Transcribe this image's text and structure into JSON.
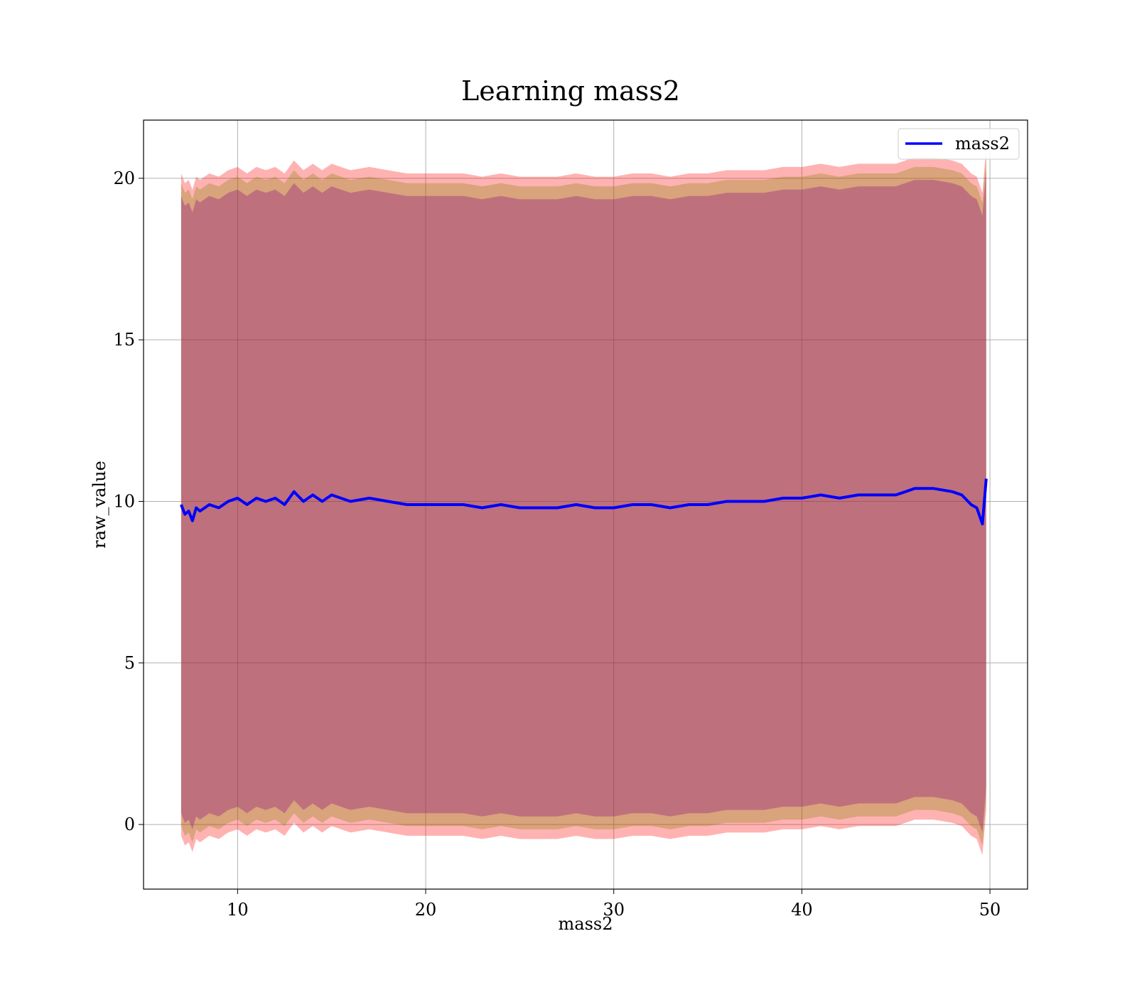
{
  "chart_data": {
    "type": "line",
    "title": "Learning mass2",
    "xlabel": "mass2",
    "ylabel": "raw_value",
    "xlim": [
      5,
      52
    ],
    "ylim": [
      -2,
      21.8
    ],
    "xticks": [
      10,
      20,
      30,
      40,
      50
    ],
    "xtick_labels": [
      "10",
      "20",
      "30",
      "40",
      "50"
    ],
    "yticks": [
      0,
      5,
      10,
      15,
      20
    ],
    "ytick_labels": [
      "0",
      "5",
      "10",
      "15",
      "20"
    ],
    "grid": true,
    "legend": {
      "position": "upper right",
      "entries": [
        "mass2"
      ]
    },
    "colors": {
      "line": "#0000ff",
      "outer_band": "#ff0000",
      "middle_band": "#808000",
      "inner_band": "#800080"
    },
    "series": [
      {
        "name": "mass2",
        "x": [
          7.0,
          7.2,
          7.4,
          7.6,
          7.8,
          8.0,
          8.5,
          9.0,
          9.5,
          10.0,
          10.5,
          11.0,
          11.5,
          12.0,
          12.5,
          13.0,
          13.5,
          14.0,
          14.5,
          15.0,
          16.0,
          17.0,
          18.0,
          19.0,
          20.0,
          21.0,
          22.0,
          23.0,
          24.0,
          25.0,
          26.0,
          27.0,
          28.0,
          29.0,
          30.0,
          31.0,
          32.0,
          33.0,
          34.0,
          35.0,
          36.0,
          37.0,
          38.0,
          39.0,
          40.0,
          41.0,
          42.0,
          43.0,
          44.0,
          45.0,
          46.0,
          47.0,
          48.0,
          48.5,
          49.0,
          49.3,
          49.6,
          49.8
        ],
        "y": [
          9.9,
          9.6,
          9.7,
          9.4,
          9.8,
          9.7,
          9.9,
          9.8,
          10.0,
          10.1,
          9.9,
          10.1,
          10.0,
          10.1,
          9.9,
          10.3,
          10.0,
          10.2,
          10.0,
          10.2,
          10.0,
          10.1,
          10.0,
          9.9,
          9.9,
          9.9,
          9.9,
          9.8,
          9.9,
          9.8,
          9.8,
          9.8,
          9.9,
          9.8,
          9.8,
          9.9,
          9.9,
          9.8,
          9.9,
          9.9,
          10.0,
          10.0,
          10.0,
          10.1,
          10.1,
          10.2,
          10.1,
          10.2,
          10.2,
          10.2,
          10.4,
          10.4,
          10.3,
          10.2,
          9.9,
          9.8,
          9.3,
          10.7
        ],
        "band_outer_offset": 10.25,
        "band_middle_offset": 9.95,
        "band_inner_offset": 9.55
      }
    ]
  }
}
